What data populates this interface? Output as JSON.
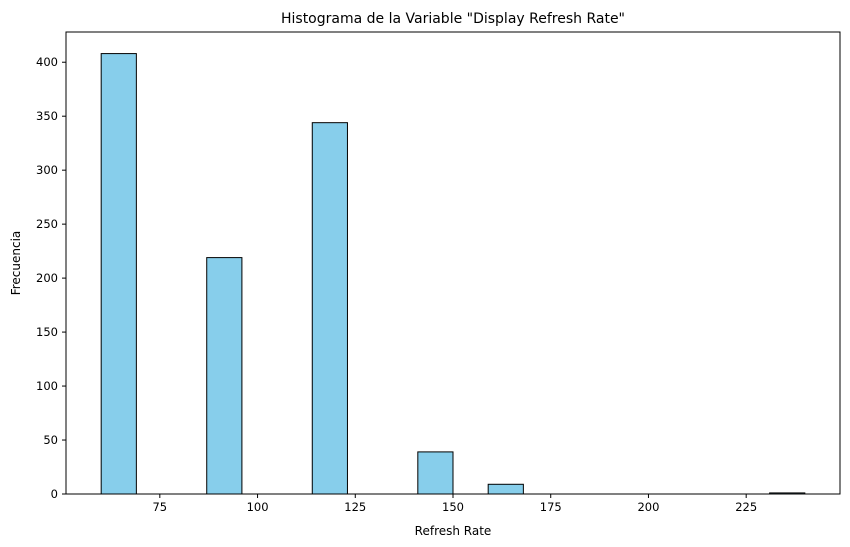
{
  "chart_data": {
    "type": "bar",
    "title": "Histograma de la Variable \"Display Refresh Rate\"",
    "xlabel": "Refresh Rate",
    "ylabel": "Frecuencia",
    "xlim": [
      51,
      249
    ],
    "ylim": [
      0,
      428
    ],
    "xticks": [
      75,
      100,
      125,
      150,
      175,
      200,
      225
    ],
    "yticks": [
      0,
      50,
      100,
      150,
      200,
      250,
      300,
      350,
      400
    ],
    "bin_edges": [
      60,
      69,
      78,
      87,
      96,
      105,
      114,
      123,
      132,
      141,
      150,
      159,
      168,
      177,
      186,
      195,
      204,
      213,
      222,
      231,
      240
    ],
    "values": [
      408,
      0,
      0,
      219,
      0,
      0,
      344,
      0,
      0,
      39,
      0,
      9,
      0,
      0,
      0,
      0,
      0,
      0,
      0,
      1
    ],
    "grid": false,
    "bar_color": "#87ceeb",
    "edge_color": "#000000"
  }
}
